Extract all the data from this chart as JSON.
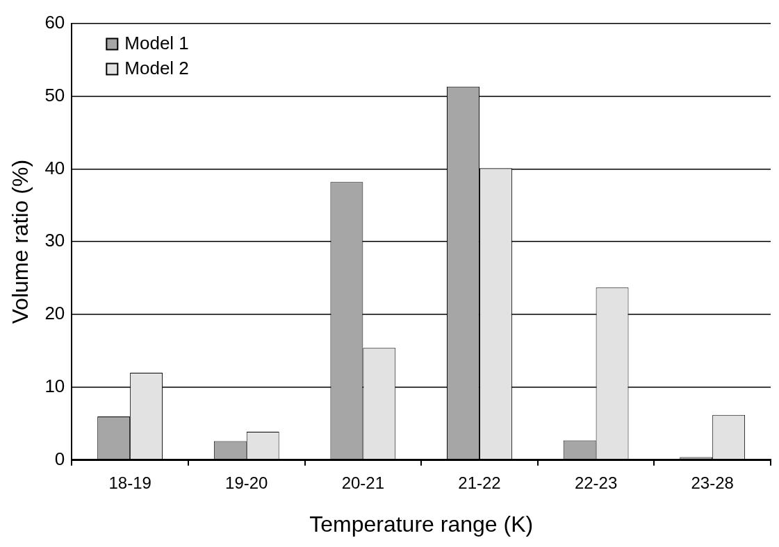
{
  "chart_data": {
    "type": "bar",
    "xlabel": "Temperature range (K)",
    "ylabel": "Volume ratio (%)",
    "categories": [
      "18-19",
      "19-20",
      "20-21",
      "21-22",
      "22-23",
      "23-28"
    ],
    "series": [
      {
        "name": "Model 1",
        "color": "#a6a6a6",
        "values": [
          6.0,
          2.6,
          38.2,
          51.3,
          2.7,
          0.4
        ]
      },
      {
        "name": "Model 2",
        "color": "#e2e2e2",
        "values": [
          12.0,
          3.9,
          15.4,
          40.1,
          23.7,
          6.2
        ]
      }
    ],
    "ylim": [
      0,
      60
    ],
    "yticks": [
      0,
      10,
      20,
      30,
      40,
      50,
      60
    ],
    "grid": "y",
    "legend": "top left"
  }
}
